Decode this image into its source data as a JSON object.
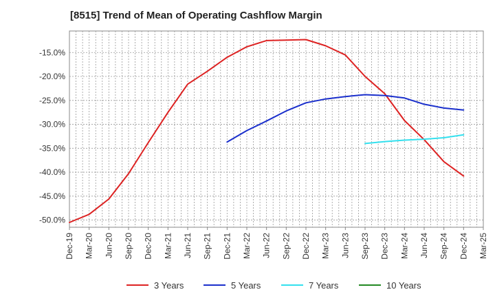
{
  "chart_data": {
    "type": "line",
    "title": "[8515]  Trend of Mean of Operating Cashflow Margin",
    "xlabel": "",
    "ylabel": "",
    "x_ticks": [
      "Dec-19",
      "Mar-20",
      "Jun-20",
      "Sep-20",
      "Dec-20",
      "Mar-21",
      "Jun-21",
      "Sep-21",
      "Dec-21",
      "Mar-22",
      "Jun-22",
      "Sep-22",
      "Dec-22",
      "Mar-23",
      "Jun-23",
      "Sep-23",
      "Dec-23",
      "Mar-24",
      "Jun-24",
      "Sep-24",
      "Dec-24",
      "Mar-25"
    ],
    "y_ticks": [
      -15.0,
      -20.0,
      -25.0,
      -30.0,
      -35.0,
      -40.0,
      -45.0,
      -50.0
    ],
    "y_tick_format": "percent_1dp",
    "ylim": [
      -51.5,
      -10.5
    ],
    "grid": true,
    "legend_position": "bottom",
    "series": [
      {
        "name": "3 Years",
        "color": "#dd2222",
        "x": [
          "Dec-19",
          "Mar-20",
          "Jun-20",
          "Sep-20",
          "Dec-20",
          "Mar-21",
          "Jun-21",
          "Sep-21",
          "Dec-21",
          "Mar-22",
          "Jun-22",
          "Sep-22",
          "Dec-22",
          "Mar-23",
          "Jun-23",
          "Sep-23",
          "Dec-23",
          "Mar-24",
          "Jun-24",
          "Sep-24",
          "Dec-24"
        ],
        "values": [
          -50.5,
          -48.8,
          -45.6,
          -40.3,
          -33.8,
          -27.5,
          -21.6,
          -18.9,
          -16.0,
          -13.8,
          -12.5,
          -12.4,
          -12.3,
          -13.6,
          -15.5,
          -20.0,
          -23.6,
          -29.2,
          -33.2,
          -37.8,
          -40.8
        ]
      },
      {
        "name": "5 Years",
        "color": "#1a2fcc",
        "x": [
          "Dec-21",
          "Mar-22",
          "Jun-22",
          "Sep-22",
          "Dec-22",
          "Mar-23",
          "Jun-23",
          "Sep-23",
          "Dec-23",
          "Mar-24",
          "Jun-24",
          "Sep-24",
          "Dec-24"
        ],
        "values": [
          -33.7,
          -31.3,
          -29.3,
          -27.2,
          -25.5,
          -24.7,
          -24.2,
          -23.8,
          -24.0,
          -24.5,
          -25.8,
          -26.6,
          -27.0
        ]
      },
      {
        "name": "7 Years",
        "color": "#33e0ee",
        "x": [
          "Sep-23",
          "Dec-23",
          "Mar-24",
          "Jun-24",
          "Sep-24",
          "Dec-24"
        ],
        "values": [
          -34.0,
          -33.6,
          -33.3,
          -33.1,
          -32.8,
          -32.2
        ]
      },
      {
        "name": "10 Years",
        "color": "#228822",
        "x": [],
        "values": []
      }
    ]
  }
}
